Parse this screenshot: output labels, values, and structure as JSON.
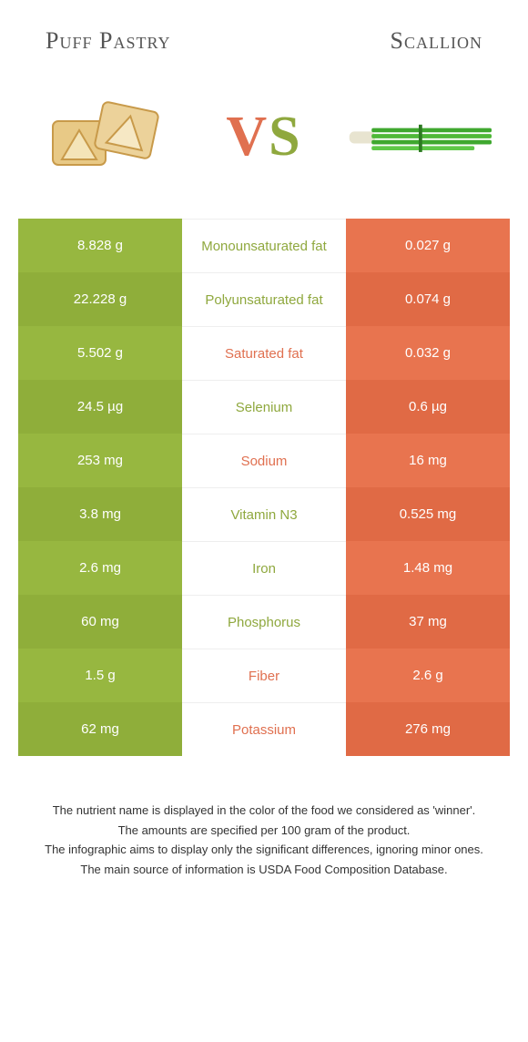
{
  "header": {
    "left_title": "Puff Pastry",
    "right_title": "Scallion"
  },
  "vs": {
    "v": "V",
    "s": "S"
  },
  "colors": {
    "left_bg": "#97b740",
    "left_bg_alt": "#8fae3a",
    "right_bg": "#e8744f",
    "right_bg_alt": "#e06a45",
    "left_text": "#8fa83e",
    "right_text": "#e07050"
  },
  "rows": [
    {
      "left": "8.828 g",
      "label": "Monounsaturated fat",
      "winner": "left",
      "right": "0.027 g"
    },
    {
      "left": "22.228 g",
      "label": "Polyunsaturated fat",
      "winner": "left",
      "right": "0.074 g"
    },
    {
      "left": "5.502 g",
      "label": "Saturated fat",
      "winner": "right",
      "right": "0.032 g"
    },
    {
      "left": "24.5 µg",
      "label": "Selenium",
      "winner": "left",
      "right": "0.6 µg"
    },
    {
      "left": "253 mg",
      "label": "Sodium",
      "winner": "right",
      "right": "16 mg"
    },
    {
      "left": "3.8 mg",
      "label": "Vitamin N3",
      "winner": "left",
      "right": "0.525 mg"
    },
    {
      "left": "2.6 mg",
      "label": "Iron",
      "winner": "left",
      "right": "1.48 mg"
    },
    {
      "left": "60 mg",
      "label": "Phosphorus",
      "winner": "left",
      "right": "37 mg"
    },
    {
      "left": "1.5 g",
      "label": "Fiber",
      "winner": "right",
      "right": "2.6 g"
    },
    {
      "left": "62 mg",
      "label": "Potassium",
      "winner": "right",
      "right": "276 mg"
    }
  ],
  "footer": {
    "line1": "The nutrient name is displayed in the color of the food we considered as 'winner'.",
    "line2": "The amounts are specified per 100 gram of the product.",
    "line3": "The infographic aims to display only the significant differences, ignoring minor ones.",
    "line4": "The main source of information is USDA Food Composition Database."
  }
}
